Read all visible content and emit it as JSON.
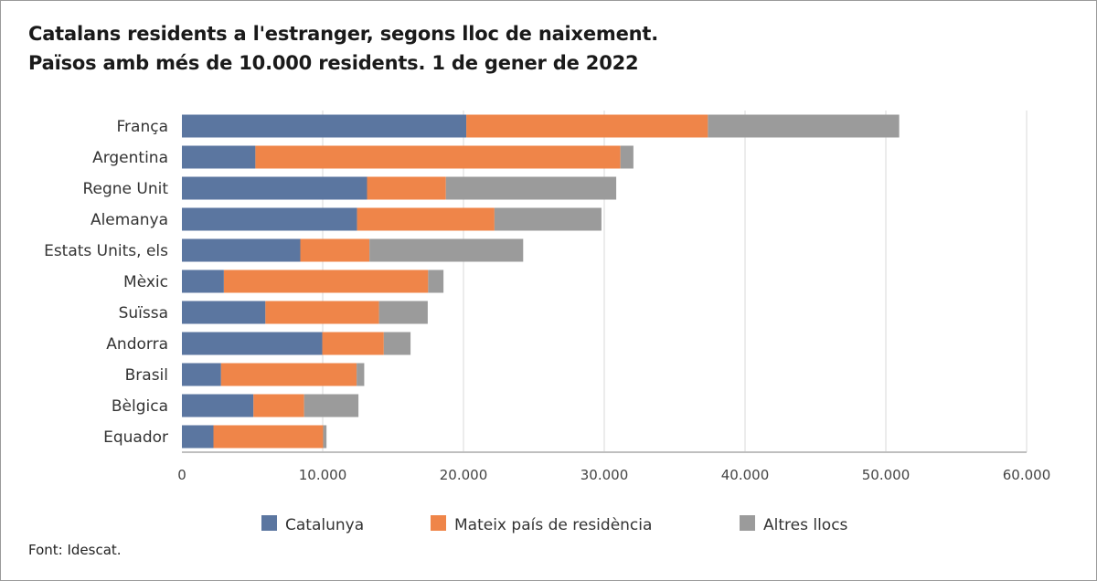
{
  "chart_data": {
    "type": "bar",
    "orientation": "horizontal",
    "stacked": true,
    "title": "Catalans residents a l'estranger, segons lloc de naixement.",
    "subtitle": "Països amb més de 10.000 residents. 1 de gener de 2022",
    "categories": [
      "França",
      "Argentina",
      "Regne Unit",
      "Alemanya",
      "Estats Units, els",
      "Mèxic",
      "Suïssa",
      "Andorra",
      "Brasil",
      "Bèlgica",
      "Equador"
    ],
    "series": [
      {
        "name": "Catalunya",
        "color": "#5b76a0",
        "values": [
          20200,
          5220,
          13150,
          12440,
          8410,
          2980,
          5930,
          9970,
          2780,
          5080,
          2240
        ]
      },
      {
        "name": "Mateix país de residència",
        "color": "#ef8549",
        "values": [
          17160,
          25930,
          5600,
          9760,
          4910,
          14510,
          8070,
          4370,
          9630,
          3600,
          7790
        ]
      },
      {
        "name": "Altres llocs",
        "color": "#9b9b9b",
        "values": [
          13590,
          920,
          12100,
          7600,
          10920,
          1090,
          3460,
          1900,
          540,
          3860,
          240
        ]
      }
    ],
    "xlim": [
      0,
      60000
    ],
    "xticks": [
      0,
      10000,
      20000,
      30000,
      40000,
      50000,
      60000
    ],
    "xtick_labels": [
      "0",
      "10.000",
      "20.000",
      "30.000",
      "40.000",
      "50.000",
      "60.000"
    ],
    "grid": "vertical",
    "legend": "bottom"
  },
  "source": "Font: Idescat."
}
